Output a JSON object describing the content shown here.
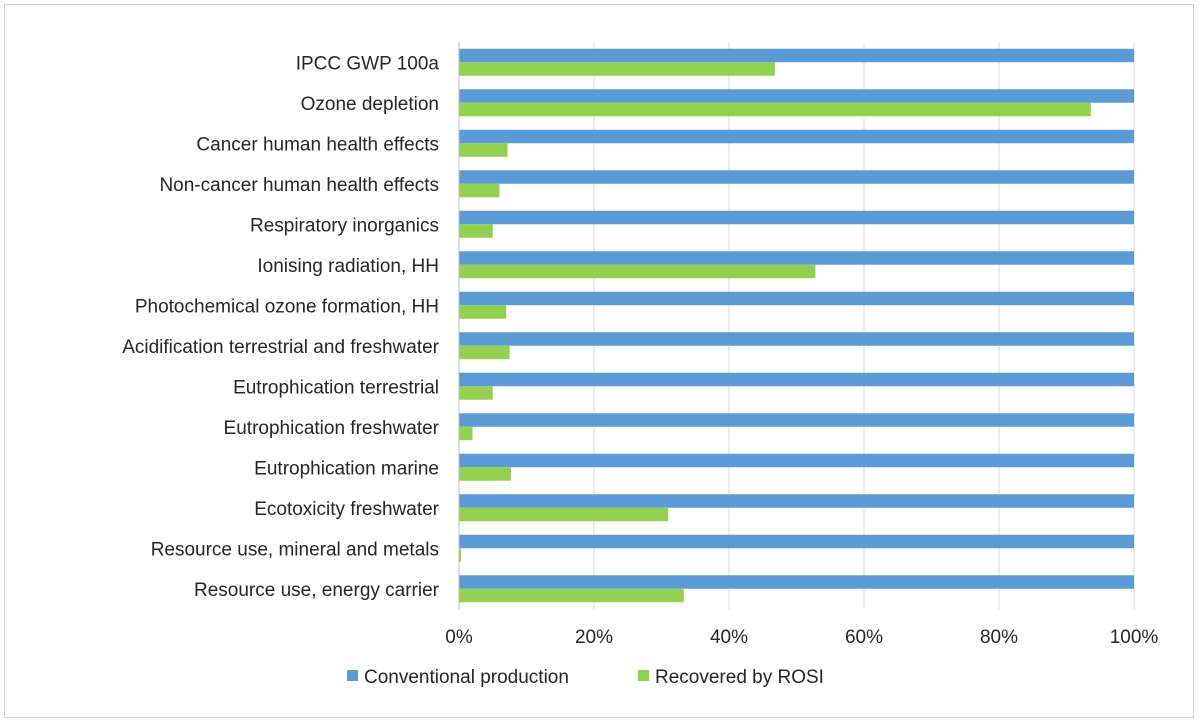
{
  "chart_data": {
    "type": "bar",
    "orientation": "horizontal",
    "categories": [
      "IPCC GWP 100a",
      "Ozone depletion",
      "Cancer human health effects",
      "Non-cancer human health effects",
      "Respiratory inorganics",
      "Ionising radiation, HH",
      "Photochemical ozone formation, HH",
      "Acidification terrestrial and freshwater",
      "Eutrophication terrestrial",
      "Eutrophication freshwater",
      "Eutrophication marine",
      "Ecotoxicity freshwater",
      "Resource use, mineral and metals",
      "Resource use, energy carrier"
    ],
    "series": [
      {
        "name": "Conventional production",
        "color": "#5B9BD5",
        "values": [
          100,
          100,
          100,
          100,
          100,
          100,
          100,
          100,
          100,
          100,
          100,
          100,
          100,
          100
        ]
      },
      {
        "name": "Recovered by ROSI",
        "color": "#92D050",
        "values": [
          46.8,
          93.6,
          7.2,
          6.0,
          5.0,
          52.8,
          7.0,
          7.5,
          5.0,
          2.0,
          7.7,
          31.0,
          0.3,
          33.3
        ]
      }
    ],
    "xlim": [
      0,
      100
    ],
    "xticks": [
      "0%",
      "20%",
      "40%",
      "60%",
      "80%",
      "100%"
    ],
    "grid": "vertical",
    "legend": "bottom",
    "title": "",
    "xlabel": "",
    "ylabel": ""
  }
}
